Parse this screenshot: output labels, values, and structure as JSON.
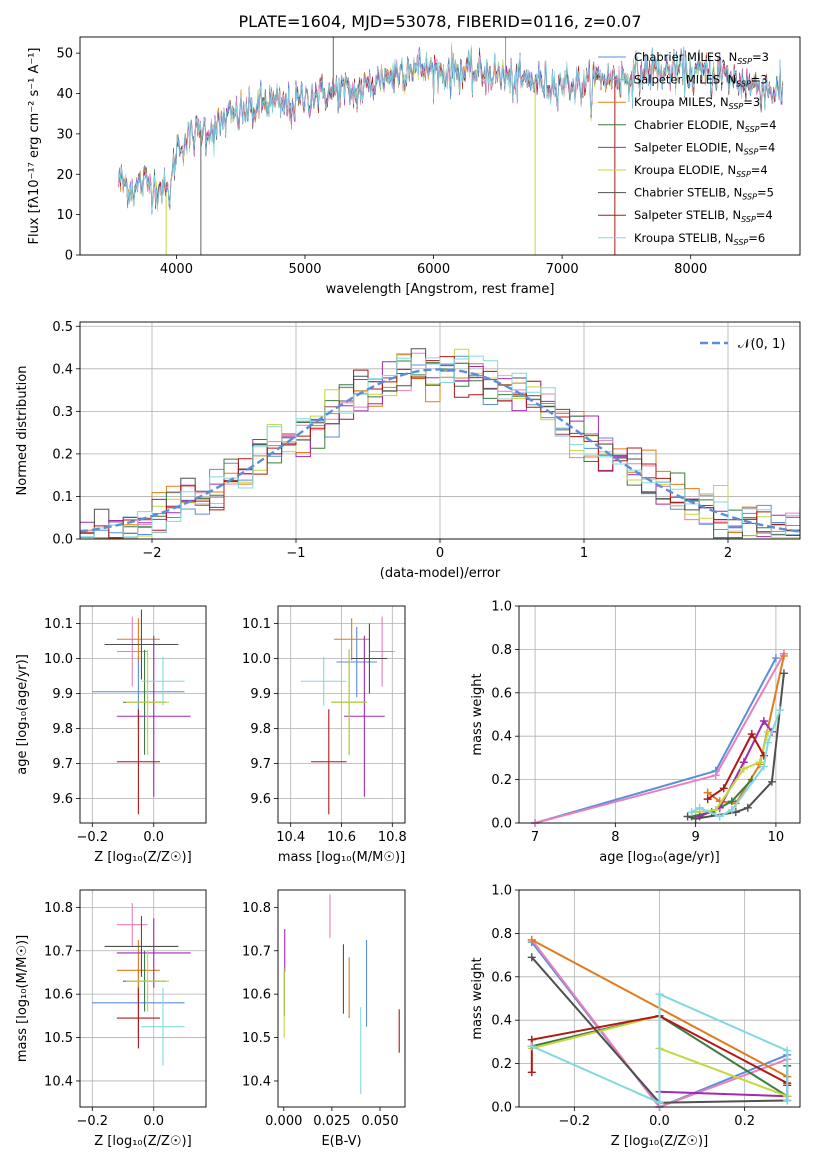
{
  "figure": {
    "title": "PLATE=1604, MJD=53078, FIBERID=0116, z=0.07"
  },
  "palette": {
    "Chabrier MILES": "#5a8fd8",
    "Salpeter MILES": "#e87fbe",
    "Kroupa MILES": "#e07b1b",
    "Chabrier ELODIE": "#3f7a3f",
    "Salpeter ELODIE": "#a02ab0",
    "Kroupa ELODIE": "#c4d640",
    "Chabrier STELIB": "#505050",
    "Salpeter STELIB": "#b01818",
    "Kroupa STELIB": "#82d8e0",
    "normal": "#5a8fd8"
  },
  "chart_data": [
    {
      "id": "spectrum",
      "type": "line",
      "title": "PLATE=1604, MJD=53078, FIBERID=0116, z=0.07",
      "xlabel": "wavelength [Angstrom, rest frame]",
      "ylabel": "Flux [fλ10⁻¹⁷ erg cm⁻² s⁻¹ A⁻¹]",
      "xlim": [
        3250,
        8850
      ],
      "ylim": [
        0,
        54
      ],
      "xticks": [
        4000,
        5000,
        6000,
        7000,
        8000
      ],
      "yticks": [
        0,
        10,
        20,
        30,
        40,
        50
      ],
      "grid": false,
      "legend_position": "upper right",
      "continuum": {
        "x": [
          3550,
          3650,
          3750,
          3850,
          3950,
          4000,
          4100,
          4200,
          4300,
          4400,
          4500,
          4600,
          4700,
          4800,
          4900,
          5000,
          5100,
          5200,
          5300,
          5400,
          5500,
          5600,
          5700,
          5800,
          5900,
          6000,
          6100,
          6200,
          6300,
          6400,
          6500,
          6600,
          6700,
          6800,
          6900,
          7000,
          7100,
          7200,
          7300,
          7400,
          7500,
          7600,
          7700,
          7800,
          7900,
          8000,
          8100,
          8200,
          8300,
          8400,
          8500,
          8600,
          8700
        ],
        "y": [
          19,
          16,
          18,
          17,
          15,
          27,
          29,
          31,
          31,
          34,
          35,
          36,
          38,
          37,
          37,
          39,
          40,
          40,
          41,
          40,
          42,
          44,
          45,
          47,
          46,
          46,
          45,
          46,
          45,
          45,
          45,
          43,
          43,
          43,
          42,
          43,
          42,
          42,
          44,
          44,
          44,
          45,
          46,
          45,
          46,
          45,
          45,
          45,
          44,
          43,
          42,
          41,
          40
        ]
      },
      "spikes": [
        {
          "x": 3920,
          "y": 0
        },
        {
          "x": 4190,
          "y": -1
        },
        {
          "x": 5220,
          "y": 54
        },
        {
          "x": 6560,
          "y": 54
        },
        {
          "x": 6790,
          "y": 0
        },
        {
          "x": 7410,
          "y": 0
        }
      ],
      "series": [
        {
          "name": "Chabrier MILES, N_SSP=3"
        },
        {
          "name": "Salpeter MILES, N_SSP=3"
        },
        {
          "name": "Kroupa MILES, N_SSP=3"
        },
        {
          "name": "Chabrier ELODIE, N_SSP=4"
        },
        {
          "name": "Salpeter ELODIE, N_SSP=4"
        },
        {
          "name": "Kroupa ELODIE, N_SSP=4"
        },
        {
          "name": "Chabrier STELIB, N_SSP=5"
        },
        {
          "name": "Salpeter STELIB, N_SSP=4"
        },
        {
          "name": "Kroupa STELIB, N_SSP=6"
        }
      ]
    },
    {
      "id": "residuals",
      "type": "histogram",
      "xlabel": "(data-model)/error",
      "ylabel": "Normed distribution",
      "xlim": [
        -2.5,
        2.5
      ],
      "ylim": [
        0,
        0.51
      ],
      "xticks": [
        -2,
        -1,
        0,
        1,
        2
      ],
      "yticks": [
        0.0,
        0.1,
        0.2,
        0.3,
        0.4,
        0.5
      ],
      "grid": true,
      "legend_position": "upper right",
      "bin_width": 0.1,
      "normal_label": "𝒩(0, 1)",
      "normal": {
        "mean": 0,
        "sigma": 1
      }
    },
    {
      "id": "age-vs-Z",
      "type": "errorbar",
      "xlabel": "Z [log₁₀(Z/Z☉)]",
      "ylabel": "age  [log₁₀(age/yr)]",
      "xlim": [
        -0.24,
        0.17
      ],
      "ylim": [
        9.53,
        10.15
      ],
      "xticks": [
        -0.2,
        0.0
      ],
      "yticks": [
        9.6,
        9.7,
        9.8,
        9.9,
        10.0,
        10.1
      ],
      "grid": true,
      "points": [
        {
          "model": "Chabrier MILES",
          "x": -0.05,
          "xerr": 0.15,
          "y": 9.905,
          "yerr": 0.1
        },
        {
          "model": "Salpeter MILES",
          "x": -0.07,
          "xerr": 0.05,
          "y": 10.02,
          "yerr": 0.1
        },
        {
          "model": "Kroupa MILES",
          "x": -0.05,
          "xerr": 0.07,
          "y": 10.055,
          "yerr": 0.06
        },
        {
          "model": "Chabrier ELODIE",
          "x": -0.03,
          "xerr": 0.07,
          "y": 9.875,
          "yerr": 0.15
        },
        {
          "model": "Salpeter ELODIE",
          "x": 0.0,
          "xerr": 0.12,
          "y": 9.835,
          "yerr": 0.23
        },
        {
          "model": "Kroupa ELODIE",
          "x": -0.02,
          "xerr": 0.07,
          "y": 9.875,
          "yerr": 0.15
        },
        {
          "model": "Chabrier STELIB",
          "x": -0.04,
          "xerr": 0.12,
          "y": 10.04,
          "yerr": 0.1
        },
        {
          "model": "Salpeter STELIB",
          "x": -0.05,
          "xerr": 0.07,
          "y": 9.705,
          "yerr": 0.15
        },
        {
          "model": "Kroupa STELIB",
          "x": 0.03,
          "xerr": 0.07,
          "y": 9.935,
          "yerr": 0.07
        }
      ]
    },
    {
      "id": "age-vs-mass",
      "type": "errorbar",
      "xlabel": "mass [log₁₀(M/M☉)]",
      "ylabel": "",
      "xlim": [
        10.35,
        10.85
      ],
      "ylim": [
        9.53,
        10.15
      ],
      "xticks": [
        10.4,
        10.6,
        10.8
      ],
      "yticks": [
        9.6,
        9.7,
        9.8,
        9.9,
        10.0,
        10.1
      ],
      "grid": true,
      "points": [
        {
          "model": "Chabrier MILES",
          "x": 10.66,
          "xerr": 0.08,
          "y": 9.99,
          "yerr": 0.1
        },
        {
          "model": "Salpeter MILES",
          "x": 10.76,
          "xerr": 0.05,
          "y": 10.02,
          "yerr": 0.1
        },
        {
          "model": "Kroupa MILES",
          "x": 10.64,
          "xerr": 0.07,
          "y": 10.055,
          "yerr": 0.06
        },
        {
          "model": "Chabrier ELODIE",
          "x": 10.63,
          "xerr": 0.07,
          "y": 9.875,
          "yerr": 0.15
        },
        {
          "model": "Salpeter ELODIE",
          "x": 10.69,
          "xerr": 0.08,
          "y": 9.835,
          "yerr": 0.23
        },
        {
          "model": "Kroupa ELODIE",
          "x": 10.63,
          "xerr": 0.07,
          "y": 9.875,
          "yerr": 0.15
        },
        {
          "model": "Chabrier STELIB",
          "x": 10.71,
          "xerr": 0.07,
          "y": 10.0,
          "yerr": 0.1
        },
        {
          "model": "Salpeter STELIB",
          "x": 10.55,
          "xerr": 0.07,
          "y": 9.705,
          "yerr": 0.15
        },
        {
          "model": "Kroupa STELIB",
          "x": 10.53,
          "xerr": 0.09,
          "y": 9.935,
          "yerr": 0.07
        }
      ]
    },
    {
      "id": "weight-vs-age",
      "type": "line",
      "xlabel": "age  [log₁₀(age/yr)]",
      "ylabel": "mass weight",
      "xlim": [
        6.8,
        10.3
      ],
      "ylim": [
        0,
        1.0
      ],
      "xticks": [
        7,
        8,
        9,
        10
      ],
      "yticks": [
        0.0,
        0.2,
        0.4,
        0.6,
        0.8,
        1.0
      ],
      "grid": true,
      "series": [
        {
          "model": "Chabrier MILES",
          "x": [
            7.0,
            9.25,
            10.0
          ],
          "y": [
            0.0,
            0.24,
            0.76
          ]
        },
        {
          "model": "Salpeter MILES",
          "x": [
            7.0,
            9.25,
            10.1
          ],
          "y": [
            0.0,
            0.22,
            0.78
          ]
        },
        {
          "model": "Kroupa MILES",
          "x": [
            9.15,
            9.3,
            9.5,
            9.8,
            10.1
          ],
          "y": [
            0.14,
            0.1,
            0.09,
            0.27,
            0.77
          ]
        },
        {
          "model": "Chabrier ELODIE",
          "x": [
            8.95,
            9.2,
            9.3,
            9.45,
            9.7
          ],
          "y": [
            0.03,
            0.05,
            0.07,
            0.1,
            0.2
          ]
        },
        {
          "model": "Salpeter ELODIE",
          "x": [
            9.05,
            9.3,
            9.6,
            9.85,
            9.95
          ],
          "y": [
            0.03,
            0.07,
            0.28,
            0.47,
            0.42
          ]
        },
        {
          "model": "Kroupa ELODIE",
          "x": [
            9.0,
            9.25,
            9.6,
            9.8,
            9.9
          ],
          "y": [
            0.05,
            0.06,
            0.25,
            0.28,
            0.42
          ]
        },
        {
          "model": "Chabrier STELIB",
          "x": [
            8.9,
            9.0,
            9.5,
            9.65,
            9.95,
            10.1
          ],
          "y": [
            0.03,
            0.02,
            0.05,
            0.07,
            0.19,
            0.69
          ]
        },
        {
          "model": "Salpeter STELIB",
          "x": [
            9.15,
            9.35,
            9.7,
            9.85
          ],
          "y": [
            0.11,
            0.16,
            0.41,
            0.31
          ]
        },
        {
          "model": "Kroupa STELIB",
          "x": [
            8.95,
            9.05,
            9.3,
            9.45,
            9.85,
            9.9,
            10.05
          ],
          "y": [
            0.05,
            0.07,
            0.03,
            0.06,
            0.26,
            0.37,
            0.52
          ]
        }
      ]
    },
    {
      "id": "mass-vs-Z",
      "type": "errorbar",
      "xlabel": "Z [log₁₀(Z/Z☉)]",
      "ylabel": "mass [log₁₀(M/M☉)]",
      "xlim": [
        -0.24,
        0.17
      ],
      "ylim": [
        10.34,
        10.84
      ],
      "xticks": [
        -0.2,
        0.0
      ],
      "yticks": [
        10.4,
        10.5,
        10.6,
        10.7,
        10.8
      ],
      "grid": true,
      "points": [
        {
          "model": "Chabrier MILES",
          "x": -0.05,
          "xerr": 0.15,
          "y": 10.58,
          "yerr": 0.08
        },
        {
          "model": "Salpeter MILES",
          "x": -0.07,
          "xerr": 0.05,
          "y": 10.76,
          "yerr": 0.05
        },
        {
          "model": "Kroupa MILES",
          "x": -0.05,
          "xerr": 0.07,
          "y": 10.655,
          "yerr": 0.07
        },
        {
          "model": "Chabrier ELODIE",
          "x": -0.03,
          "xerr": 0.07,
          "y": 10.63,
          "yerr": 0.07
        },
        {
          "model": "Salpeter ELODIE",
          "x": 0.0,
          "xerr": 0.12,
          "y": 10.695,
          "yerr": 0.08
        },
        {
          "model": "Kroupa ELODIE",
          "x": -0.02,
          "xerr": 0.07,
          "y": 10.63,
          "yerr": 0.07
        },
        {
          "model": "Chabrier STELIB",
          "x": -0.04,
          "xerr": 0.12,
          "y": 10.71,
          "yerr": 0.07
        },
        {
          "model": "Salpeter STELIB",
          "x": -0.05,
          "xerr": 0.07,
          "y": 10.545,
          "yerr": 0.07
        },
        {
          "model": "Kroupa STELIB",
          "x": 0.03,
          "xerr": 0.07,
          "y": 10.525,
          "yerr": 0.09
        }
      ]
    },
    {
      "id": "mass-vs-EBV",
      "type": "errorbar",
      "xlabel": "E(B-V)",
      "ylabel": "",
      "xlim": [
        -0.003,
        0.063
      ],
      "ylim": [
        10.34,
        10.84
      ],
      "xticks": [
        0.0,
        0.025,
        0.05
      ],
      "xtick_labels": [
        "0.000",
        "0.025",
        "0.050"
      ],
      "yticks": [
        10.4,
        10.5,
        10.6,
        10.7,
        10.8
      ],
      "grid": false,
      "points": [
        {
          "model": "Chabrier MILES",
          "x": 0.043,
          "y": 10.625,
          "yerr": 0.1
        },
        {
          "model": "Salpeter MILES",
          "x": 0.024,
          "y": 10.78,
          "yerr": 0.05
        },
        {
          "model": "Kroupa MILES",
          "x": 0.034,
          "y": 10.615,
          "yerr": 0.07
        },
        {
          "model": "Chabrier ELODIE",
          "x": 0.0003,
          "y": 10.6,
          "yerr": 0.05
        },
        {
          "model": "Salpeter ELODIE",
          "x": 0.0005,
          "y": 10.7,
          "yerr": 0.05
        },
        {
          "model": "Kroupa ELODIE",
          "x": 0.0002,
          "y": 10.58,
          "yerr": 0.08
        },
        {
          "model": "Chabrier STELIB",
          "x": 0.031,
          "y": 10.635,
          "yerr": 0.08
        },
        {
          "model": "Salpeter STELIB",
          "x": 0.06,
          "y": 10.515,
          "yerr": 0.05
        },
        {
          "model": "Kroupa STELIB",
          "x": 0.04,
          "y": 10.47,
          "yerr": 0.1
        }
      ]
    },
    {
      "id": "weight-vs-Z",
      "type": "line",
      "xlabel": "Z [log₁₀(Z/Z☉)]",
      "ylabel": "mass weight",
      "xlim": [
        -0.33,
        0.33
      ],
      "ylim": [
        0,
        1.0
      ],
      "xticks": [
        -0.2,
        0.0,
        0.2
      ],
      "yticks": [
        0.0,
        0.2,
        0.4,
        0.6,
        0.8,
        1.0
      ],
      "grid": true,
      "series": [
        {
          "model": "Chabrier MILES",
          "x": [
            -0.3,
            0.0,
            0.3
          ],
          "y": [
            0.76,
            0.0,
            0.24
          ]
        },
        {
          "model": "Salpeter MILES",
          "x": [
            -0.3,
            0.0,
            0.3
          ],
          "y": [
            0.77,
            0.0,
            0.22
          ]
        },
        {
          "model": "Kroupa MILES",
          "x": [
            -0.3,
            0.3
          ],
          "y": [
            0.77,
            0.14
          ]
        },
        {
          "model": "Chabrier ELODIE",
          "x": [
            -0.3,
            0.0,
            0.3
          ],
          "y": [
            0.28,
            0.42,
            0.05
          ]
        },
        {
          "model": "Salpeter ELODIE",
          "x": [
            0.0,
            0.3
          ],
          "y": [
            0.07,
            0.05
          ]
        },
        {
          "model": "Kroupa ELODIE",
          "x": [
            -0.3,
            0.0,
            0.0,
            0.3
          ],
          "y": [
            0.27,
            0.42,
            0.27,
            0.05
          ]
        },
        {
          "model": "Chabrier STELIB",
          "x": [
            -0.3,
            0.0,
            0.3,
            0.3
          ],
          "y": [
            0.69,
            0.02,
            0.03,
            0.19
          ]
        },
        {
          "model": "Salpeter STELIB",
          "x": [
            -0.3,
            -0.3,
            0.0,
            0.3,
            0.3
          ],
          "y": [
            0.16,
            0.31,
            0.42,
            0.11,
            0.1
          ]
        },
        {
          "model": "Kroupa STELIB",
          "x": [
            -0.3,
            0.0,
            0.0,
            0.3,
            0.3
          ],
          "y": [
            0.28,
            0.02,
            0.52,
            0.26,
            0.03
          ]
        }
      ]
    }
  ]
}
